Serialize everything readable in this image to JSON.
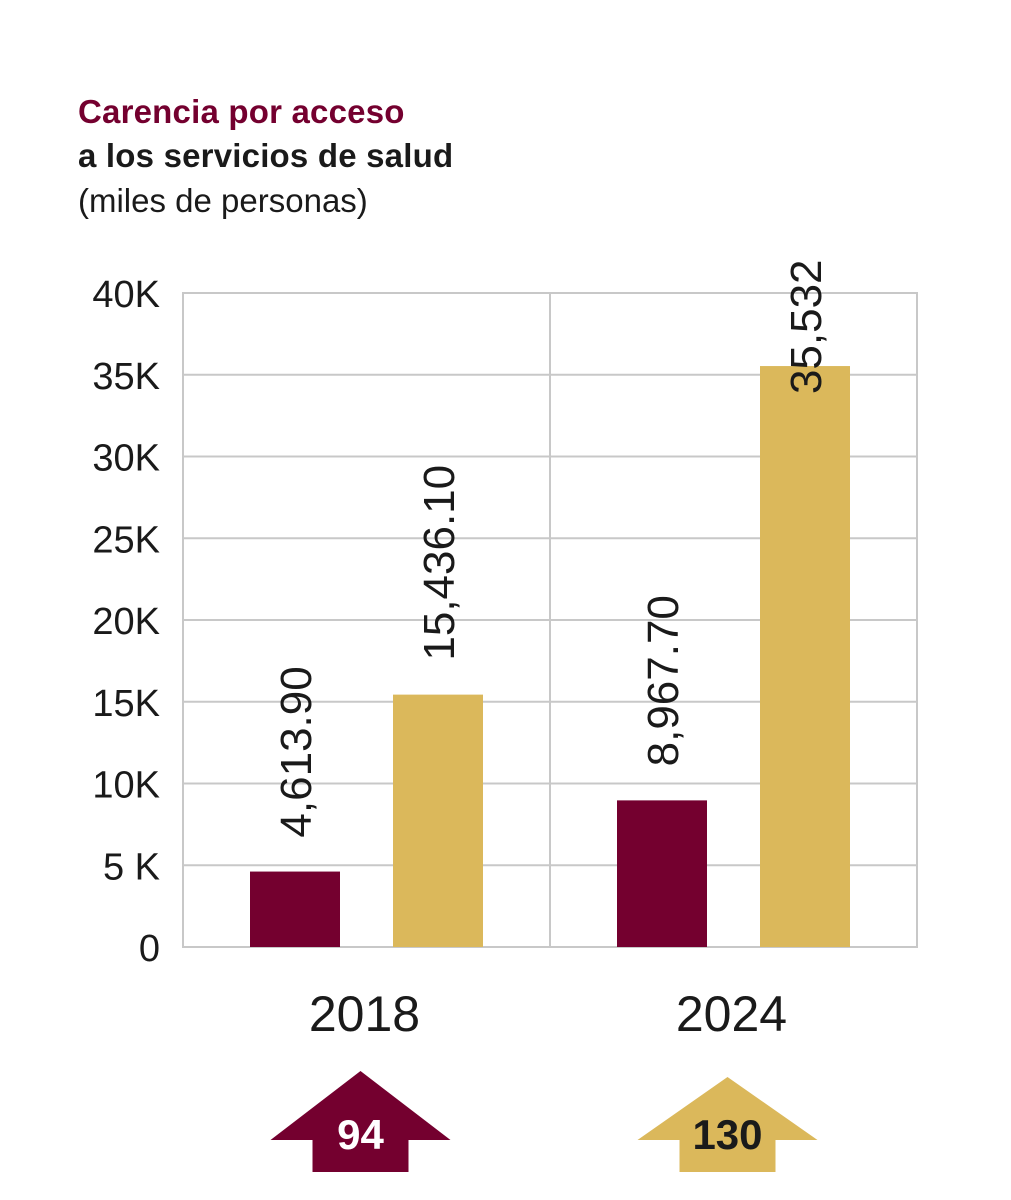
{
  "title": {
    "line1": "Carencia por acceso",
    "line2": "a los servicios de salud",
    "line3": "(miles de personas)"
  },
  "colors": {
    "primary": "#74002f",
    "secondary": "#dbb85b",
    "grid": "#c8c8c8",
    "text": "#1a1a1a"
  },
  "chart_data": {
    "type": "bar",
    "title": "Carencia por acceso a los servicios de salud (miles de personas)",
    "categories": [
      "2018",
      "2024"
    ],
    "series": [
      {
        "name": "series-1",
        "color": "#74002f",
        "values": [
          4613.9,
          8967.7
        ],
        "labels": [
          "4,613.90",
          "8,967.70"
        ]
      },
      {
        "name": "series-2",
        "color": "#dbb85b",
        "values": [
          15436.1,
          35532
        ],
        "labels": [
          "15,436.10",
          "35,532"
        ]
      }
    ],
    "ylim": [
      0,
      40000
    ],
    "yticks": [
      0,
      5000,
      10000,
      15000,
      20000,
      25000,
      30000,
      35000,
      40000
    ],
    "ytick_labels": [
      "0",
      "5 K",
      "10K",
      "15K",
      "20K",
      "25K",
      "30K",
      "35K",
      "40K"
    ],
    "xlabel": "",
    "ylabel": "",
    "grid": true
  },
  "badges": [
    {
      "value": "94",
      "color": "#74002f",
      "text_color": "#ffffff"
    },
    {
      "value": "130",
      "color": "#dbb85b",
      "text_color": "#1a1a1a"
    }
  ]
}
